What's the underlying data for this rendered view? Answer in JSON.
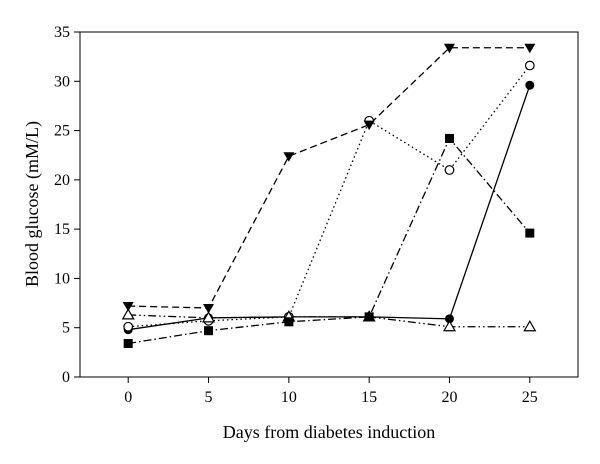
{
  "chart_data": {
    "type": "line",
    "title": "",
    "xlabel": "Days from diabetes induction",
    "ylabel": "Blood glucose (mM/L)",
    "xlim": [
      -3,
      28
    ],
    "ylim": [
      0,
      35
    ],
    "xticks": [
      0,
      5,
      10,
      15,
      20,
      25
    ],
    "yticks": [
      0,
      5,
      10,
      15,
      20,
      25,
      30,
      35
    ],
    "grid": false,
    "legend": "none",
    "x": [
      0,
      5,
      10,
      15,
      20,
      25
    ],
    "series": [
      {
        "marker": "filled-circle",
        "line": "solid",
        "color": "#000000",
        "values": [
          4.8,
          6.0,
          6.1,
          6.1,
          5.9,
          29.6
        ]
      },
      {
        "marker": "open-circle",
        "line": "dotted",
        "color": "#000000",
        "values": [
          5.1,
          5.7,
          6.1,
          26.0,
          21.0,
          31.6
        ]
      },
      {
        "marker": "filled-down-triangle",
        "line": "dashed",
        "color": "#000000",
        "values": [
          7.2,
          7.0,
          22.4,
          25.6,
          33.4,
          33.4
        ]
      },
      {
        "marker": "open-triangle",
        "line": "dash-dot-dot",
        "color": "#000000",
        "values": [
          6.3,
          6.0,
          6.1,
          6.1,
          5.1,
          5.1
        ]
      },
      {
        "marker": "filled-square",
        "line": "dash-dot",
        "color": "#000000",
        "values": [
          3.4,
          4.7,
          5.6,
          6.1,
          24.2,
          14.6
        ]
      }
    ]
  }
}
